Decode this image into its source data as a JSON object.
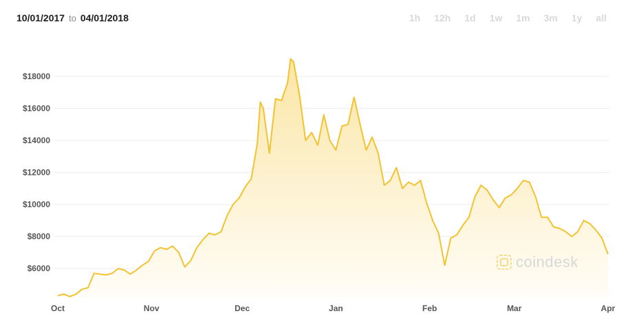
{
  "header": {
    "start_date": "10/01/2017",
    "to_label": "to",
    "end_date": "04/01/2018"
  },
  "periods": [
    "1h",
    "12h",
    "1d",
    "1w",
    "1m",
    "3m",
    "1y",
    "all"
  ],
  "watermark": {
    "text": "coindesk",
    "icon": "coindesk-logo-icon"
  },
  "colors": {
    "line": "#f2c230",
    "fill_top": "#fbe6a6",
    "fill_bottom": "#fffdf7",
    "grid": "#eeeeee",
    "text": "#555555"
  },
  "chart_data": {
    "type": "area",
    "title": "",
    "xlabel": "",
    "ylabel": "",
    "ylim": [
      4000,
      19500
    ],
    "yticks": [
      6000,
      8000,
      10000,
      12000,
      14000,
      16000,
      18000
    ],
    "ytick_labels": [
      "$6000",
      "$8000",
      "$10000",
      "$12000",
      "$14000",
      "$16000",
      "$18000"
    ],
    "xtick_labels": [
      {
        "label": "Oct",
        "date": "2017-10-01"
      },
      {
        "label": "Nov",
        "date": "2017-11-01"
      },
      {
        "label": "Dec",
        "date": "2017-12-01"
      },
      {
        "label": "Jan",
        "date": "2018-01-01"
      },
      {
        "label": "Feb",
        "date": "2018-02-01"
      },
      {
        "label": "Mar",
        "date": "2018-03-01"
      },
      {
        "label": "Apr",
        "date": "2018-04-01"
      }
    ],
    "grid": true,
    "series": [
      {
        "x": [
          "2017-10-01",
          "2017-10-03",
          "2017-10-05",
          "2017-10-07",
          "2017-10-09",
          "2017-10-11",
          "2017-10-13",
          "2017-10-15",
          "2017-10-17",
          "2017-10-19",
          "2017-10-21",
          "2017-10-23",
          "2017-10-25",
          "2017-10-27",
          "2017-10-29",
          "2017-10-31",
          "2017-11-02",
          "2017-11-04",
          "2017-11-06",
          "2017-11-08",
          "2017-11-10",
          "2017-11-12",
          "2017-11-14",
          "2017-11-16",
          "2017-11-18",
          "2017-11-20",
          "2017-11-22",
          "2017-11-24",
          "2017-11-26",
          "2017-11-28",
          "2017-11-30",
          "2017-12-02",
          "2017-12-04",
          "2017-12-06",
          "2017-12-07",
          "2017-12-08",
          "2017-12-10",
          "2017-12-12",
          "2017-12-14",
          "2017-12-16",
          "2017-12-17",
          "2017-12-18",
          "2017-12-20",
          "2017-12-22",
          "2017-12-24",
          "2017-12-26",
          "2017-12-28",
          "2017-12-30",
          "2018-01-01",
          "2018-01-03",
          "2018-01-05",
          "2018-01-07",
          "2018-01-09",
          "2018-01-11",
          "2018-01-13",
          "2018-01-15",
          "2018-01-17",
          "2018-01-19",
          "2018-01-21",
          "2018-01-23",
          "2018-01-25",
          "2018-01-27",
          "2018-01-29",
          "2018-01-31",
          "2018-02-02",
          "2018-02-04",
          "2018-02-06",
          "2018-02-08",
          "2018-02-10",
          "2018-02-12",
          "2018-02-14",
          "2018-02-16",
          "2018-02-18",
          "2018-02-20",
          "2018-02-22",
          "2018-02-24",
          "2018-02-26",
          "2018-02-28",
          "2018-03-02",
          "2018-03-04",
          "2018-03-06",
          "2018-03-08",
          "2018-03-10",
          "2018-03-12",
          "2018-03-14",
          "2018-03-16",
          "2018-03-18",
          "2018-03-20",
          "2018-03-22",
          "2018-03-24",
          "2018-03-26",
          "2018-03-28",
          "2018-03-30",
          "2018-04-01"
        ],
        "values": [
          4300,
          4400,
          4250,
          4400,
          4700,
          4800,
          5700,
          5650,
          5600,
          5700,
          6000,
          5900,
          5650,
          5900,
          6200,
          6450,
          7100,
          7300,
          7200,
          7400,
          7000,
          6100,
          6500,
          7300,
          7800,
          8200,
          8100,
          8300,
          9300,
          10000,
          10400,
          11100,
          11600,
          13800,
          16400,
          16000,
          13200,
          16600,
          16500,
          17600,
          19100,
          18900,
          16800,
          14000,
          14500,
          13700,
          15600,
          14000,
          13400,
          14900,
          15000,
          16700,
          15000,
          13400,
          14200,
          13200,
          11200,
          11500,
          12300,
          11000,
          11400,
          11200,
          11500,
          10100,
          9000,
          8200,
          6200,
          7900,
          8100,
          8700,
          9200,
          10500,
          11200,
          10900,
          10300,
          9800,
          10400,
          10600,
          11000,
          11500,
          11400,
          10500,
          9200,
          9200,
          8600,
          8500,
          8300,
          8000,
          8300,
          9000,
          8800,
          8400,
          7900,
          6900
        ]
      }
    ]
  }
}
